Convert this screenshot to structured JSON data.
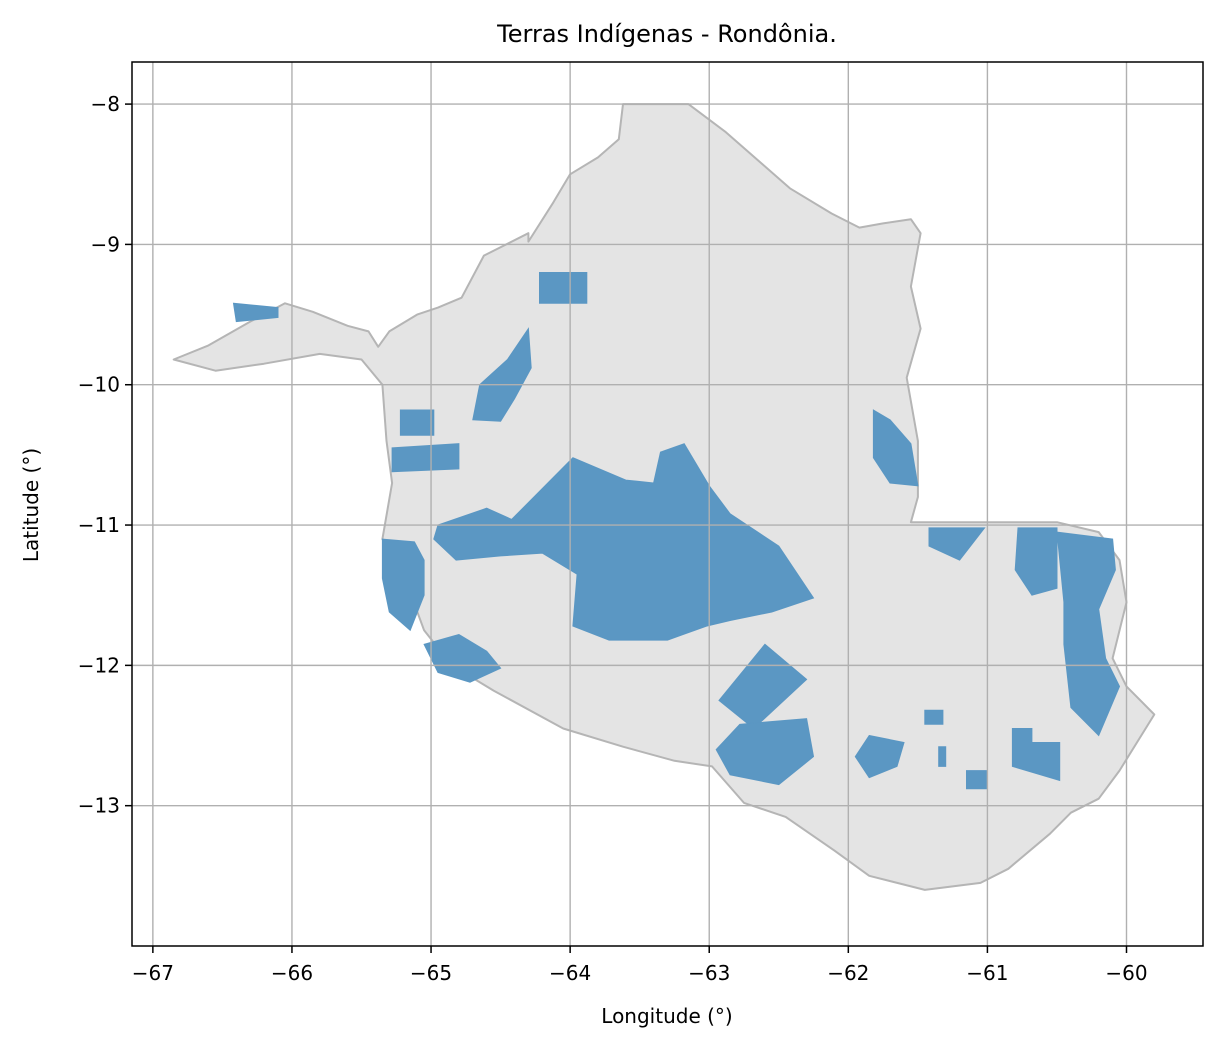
{
  "title": "Terras Indígenas - Rondônia.",
  "xlabel": "Longitude (°)",
  "ylabel": "Latitude (°)",
  "colors": {
    "state_fill": "#e4e4e4",
    "state_edge": "#b5b5b5",
    "indigenous_fill": "#5b97c3",
    "grid": "#b0b0b0"
  },
  "chart_data": {
    "type": "map",
    "title": "Terras Indígenas - Rondônia.",
    "xlabel": "Longitude (°)",
    "ylabel": "Latitude (°)",
    "xlim": [
      -67.15,
      -59.45
    ],
    "ylim": [
      -14.0,
      -7.7
    ],
    "grid": true,
    "x_ticks": [
      -67,
      -66,
      -65,
      -64,
      -63,
      -62,
      -61,
      -60
    ],
    "y_ticks": [
      -8,
      -9,
      -10,
      -11,
      -12,
      -13
    ],
    "x_tick_labels": [
      "−67",
      "−66",
      "−65",
      "−64",
      "−63",
      "−62",
      "−61",
      "−60"
    ],
    "y_tick_labels": [
      "−8",
      "−9",
      "−10",
      "−11",
      "−12",
      "−13"
    ],
    "state_outline": [
      [
        -66.85,
        -9.82
      ],
      [
        -66.6,
        -9.72
      ],
      [
        -66.3,
        -9.55
      ],
      [
        -66.05,
        -9.42
      ],
      [
        -65.85,
        -9.48
      ],
      [
        -65.6,
        -9.58
      ],
      [
        -65.45,
        -9.62
      ],
      [
        -65.38,
        -9.73
      ],
      [
        -65.3,
        -9.62
      ],
      [
        -65.1,
        -9.5
      ],
      [
        -64.95,
        -9.45
      ],
      [
        -64.78,
        -9.38
      ],
      [
        -64.62,
        -9.08
      ],
      [
        -64.3,
        -8.92
      ],
      [
        -64.3,
        -8.98
      ],
      [
        -64.12,
        -8.7
      ],
      [
        -64.0,
        -8.5
      ],
      [
        -63.8,
        -8.38
      ],
      [
        -63.65,
        -8.25
      ],
      [
        -63.62,
        -8.0
      ],
      [
        -63.15,
        -8.0
      ],
      [
        -62.88,
        -8.2
      ],
      [
        -62.65,
        -8.4
      ],
      [
        -62.42,
        -8.6
      ],
      [
        -62.12,
        -8.78
      ],
      [
        -61.92,
        -8.88
      ],
      [
        -61.75,
        -8.85
      ],
      [
        -61.55,
        -8.82
      ],
      [
        -61.48,
        -8.92
      ],
      [
        -61.55,
        -9.3
      ],
      [
        -61.48,
        -9.6
      ],
      [
        -61.58,
        -9.95
      ],
      [
        -61.5,
        -10.4
      ],
      [
        -61.5,
        -10.8
      ],
      [
        -61.55,
        -10.98
      ],
      [
        -61.0,
        -10.98
      ],
      [
        -60.5,
        -10.98
      ],
      [
        -60.2,
        -11.05
      ],
      [
        -60.05,
        -11.25
      ],
      [
        -60.0,
        -11.55
      ],
      [
        -60.1,
        -11.95
      ],
      [
        -60.0,
        -12.15
      ],
      [
        -59.8,
        -12.35
      ],
      [
        -60.05,
        -12.75
      ],
      [
        -60.2,
        -12.95
      ],
      [
        -60.4,
        -13.05
      ],
      [
        -60.55,
        -13.2
      ],
      [
        -60.85,
        -13.45
      ],
      [
        -61.05,
        -13.55
      ],
      [
        -61.45,
        -13.6
      ],
      [
        -61.85,
        -13.5
      ],
      [
        -62.1,
        -13.32
      ],
      [
        -62.45,
        -13.08
      ],
      [
        -62.75,
        -12.98
      ],
      [
        -62.98,
        -12.72
      ],
      [
        -63.25,
        -12.68
      ],
      [
        -63.62,
        -12.58
      ],
      [
        -64.05,
        -12.45
      ],
      [
        -64.55,
        -12.18
      ],
      [
        -64.85,
        -12.0
      ],
      [
        -65.05,
        -11.75
      ],
      [
        -65.18,
        -11.4
      ],
      [
        -65.35,
        -11.1
      ],
      [
        -65.28,
        -10.7
      ],
      [
        -65.32,
        -10.4
      ],
      [
        -65.35,
        -10.0
      ],
      [
        -65.5,
        -9.82
      ],
      [
        -65.8,
        -9.78
      ],
      [
        -66.2,
        -9.85
      ],
      [
        -66.55,
        -9.9
      ],
      [
        -66.85,
        -9.82
      ]
    ],
    "indigenous_lands": [
      {
        "points": [
          [
            -66.42,
            -9.42
          ],
          [
            -66.1,
            -9.45
          ],
          [
            -66.1,
            -9.52
          ],
          [
            -66.4,
            -9.55
          ]
        ]
      },
      {
        "points": [
          [
            -64.22,
            -9.2
          ],
          [
            -63.88,
            -9.2
          ],
          [
            -63.88,
            -9.42
          ],
          [
            -64.22,
            -9.42
          ]
        ]
      },
      {
        "points": [
          [
            -64.3,
            -9.6
          ],
          [
            -64.28,
            -9.88
          ],
          [
            -64.4,
            -10.1
          ],
          [
            -64.5,
            -10.26
          ],
          [
            -64.7,
            -10.25
          ],
          [
            -64.65,
            -10.0
          ],
          [
            -64.45,
            -9.82
          ]
        ]
      },
      {
        "points": [
          [
            -65.22,
            -10.18
          ],
          [
            -64.98,
            -10.18
          ],
          [
            -64.98,
            -10.36
          ],
          [
            -65.22,
            -10.36
          ]
        ]
      },
      {
        "points": [
          [
            -65.28,
            -10.45
          ],
          [
            -64.8,
            -10.42
          ],
          [
            -64.8,
            -10.6
          ],
          [
            -65.28,
            -10.62
          ]
        ]
      },
      {
        "points": [
          [
            -64.42,
            -10.96
          ],
          [
            -63.98,
            -10.52
          ],
          [
            -63.6,
            -10.68
          ],
          [
            -63.4,
            -10.7
          ],
          [
            -63.35,
            -10.48
          ],
          [
            -63.18,
            -10.42
          ],
          [
            -63.0,
            -10.72
          ],
          [
            -62.85,
            -10.92
          ],
          [
            -62.5,
            -11.15
          ],
          [
            -62.25,
            -11.52
          ],
          [
            -62.55,
            -11.62
          ],
          [
            -62.85,
            -11.68
          ],
          [
            -63.02,
            -11.72
          ],
          [
            -63.3,
            -11.82
          ],
          [
            -63.72,
            -11.82
          ],
          [
            -63.98,
            -11.72
          ],
          [
            -63.95,
            -11.35
          ],
          [
            -64.2,
            -11.2
          ],
          [
            -64.5,
            -11.22
          ],
          [
            -64.82,
            -11.25
          ],
          [
            -64.98,
            -11.1
          ],
          [
            -64.95,
            -11.0
          ],
          [
            -64.6,
            -10.88
          ]
        ]
      },
      {
        "points": [
          [
            -65.35,
            -11.1
          ],
          [
            -65.12,
            -11.12
          ],
          [
            -65.05,
            -11.25
          ],
          [
            -65.05,
            -11.5
          ],
          [
            -65.15,
            -11.75
          ],
          [
            -65.3,
            -11.62
          ],
          [
            -65.35,
            -11.38
          ]
        ]
      },
      {
        "points": [
          [
            -65.05,
            -11.85
          ],
          [
            -64.8,
            -11.78
          ],
          [
            -64.6,
            -11.9
          ],
          [
            -64.5,
            -12.02
          ],
          [
            -64.72,
            -12.12
          ],
          [
            -64.95,
            -12.05
          ]
        ]
      },
      {
        "points": [
          [
            -61.82,
            -10.18
          ],
          [
            -61.7,
            -10.25
          ],
          [
            -61.55,
            -10.42
          ],
          [
            -61.5,
            -10.72
          ],
          [
            -61.7,
            -10.7
          ],
          [
            -61.82,
            -10.52
          ]
        ]
      },
      {
        "points": [
          [
            -61.42,
            -11.02
          ],
          [
            -61.02,
            -11.02
          ],
          [
            -61.2,
            -11.25
          ],
          [
            -61.42,
            -11.15
          ]
        ]
      },
      {
        "points": [
          [
            -60.78,
            -11.02
          ],
          [
            -60.5,
            -11.02
          ],
          [
            -60.5,
            -11.45
          ],
          [
            -60.68,
            -11.5
          ],
          [
            -60.8,
            -11.32
          ]
        ]
      },
      {
        "points": [
          [
            -60.5,
            -11.05
          ],
          [
            -60.1,
            -11.1
          ],
          [
            -60.08,
            -11.32
          ],
          [
            -60.2,
            -11.6
          ],
          [
            -60.15,
            -11.95
          ],
          [
            -60.05,
            -12.15
          ],
          [
            -60.2,
            -12.5
          ],
          [
            -60.4,
            -12.3
          ],
          [
            -60.45,
            -11.85
          ],
          [
            -60.45,
            -11.55
          ]
        ]
      },
      {
        "points": [
          [
            -62.6,
            -11.85
          ],
          [
            -62.3,
            -12.1
          ],
          [
            -62.68,
            -12.45
          ],
          [
            -62.93,
            -12.25
          ]
        ]
      },
      {
        "points": [
          [
            -62.78,
            -12.42
          ],
          [
            -62.95,
            -12.6
          ],
          [
            -62.85,
            -12.78
          ],
          [
            -62.5,
            -12.85
          ],
          [
            -62.25,
            -12.65
          ],
          [
            -62.3,
            -12.38
          ]
        ]
      },
      {
        "points": [
          [
            -61.85,
            -12.5
          ],
          [
            -61.6,
            -12.55
          ],
          [
            -61.65,
            -12.72
          ],
          [
            -61.85,
            -12.8
          ],
          [
            -61.95,
            -12.65
          ]
        ]
      },
      {
        "points": [
          [
            -61.45,
            -12.32
          ],
          [
            -61.32,
            -12.32
          ],
          [
            -61.32,
            -12.42
          ],
          [
            -61.45,
            -12.42
          ]
        ]
      },
      {
        "points": [
          [
            -61.35,
            -12.58
          ],
          [
            -61.3,
            -12.58
          ],
          [
            -61.3,
            -12.72
          ],
          [
            -61.35,
            -12.72
          ]
        ]
      },
      {
        "points": [
          [
            -61.15,
            -12.75
          ],
          [
            -61.0,
            -12.75
          ],
          [
            -61.0,
            -12.88
          ],
          [
            -61.15,
            -12.88
          ]
        ]
      },
      {
        "points": [
          [
            -60.82,
            -12.45
          ],
          [
            -60.68,
            -12.45
          ],
          [
            -60.68,
            -12.55
          ],
          [
            -60.48,
            -12.55
          ],
          [
            -60.48,
            -12.82
          ],
          [
            -60.82,
            -12.72
          ]
        ]
      }
    ]
  }
}
